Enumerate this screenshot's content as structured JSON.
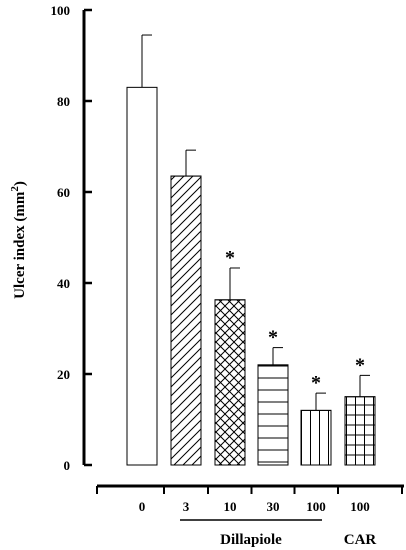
{
  "chart_data": {
    "type": "bar",
    "categories": [
      "0",
      "3",
      "10",
      "30",
      "100",
      "100"
    ],
    "values": [
      83,
      63.5,
      36.3,
      22,
      12,
      15
    ],
    "errors": [
      11.5,
      5.7,
      7,
      3.8,
      3.8,
      4.7
    ],
    "significant": [
      false,
      false,
      true,
      true,
      true,
      true
    ],
    "significance_marker": "*",
    "patterns": [
      "none",
      "diagonal",
      "crosshatch",
      "horizontal",
      "vertical",
      "grid"
    ],
    "ylabel": "Ulcer index (mm",
    "ylabel_sup": "2",
    "ylabel_close": ")",
    "ylim": [
      0,
      100
    ],
    "yticks": [
      0,
      20,
      40,
      60,
      80,
      100
    ],
    "groups": [
      {
        "label": "Dillapiole",
        "from": 1,
        "to": 4,
        "underline": true
      },
      {
        "label": "CAR",
        "from": 5,
        "to": 5,
        "underline": false
      }
    ],
    "colors": {
      "bar_fill": "#ffffff",
      "stroke": "#000000"
    }
  }
}
